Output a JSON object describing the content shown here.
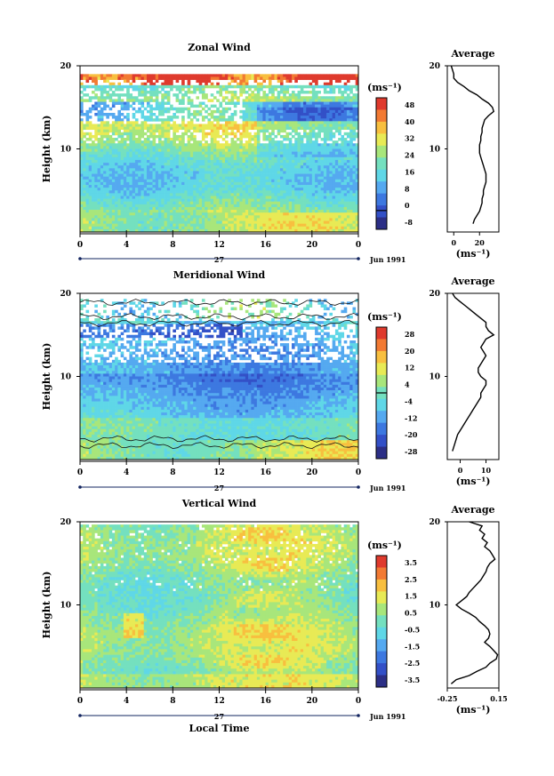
{
  "chart_data": [
    {
      "type": "heatmap",
      "title": "Zonal Wind",
      "ylabel": "Height (km)",
      "y_ticks": [
        "20",
        "10"
      ],
      "x_ticks": [
        "0",
        "4",
        "8",
        "12",
        "16",
        "20",
        "0"
      ],
      "date_day": "27",
      "date_label": "Jun 1991",
      "colorbar": {
        "unit": "(ms⁻¹)",
        "ticks": [
          "48",
          "40",
          "32",
          "24",
          "16",
          "8",
          "0",
          "-8"
        ],
        "min": -8,
        "max": 48,
        "zero_line_value": 0
      },
      "average_panel": {
        "title": "Average",
        "x_ticks": [
          "0",
          "20"
        ],
        "y_ticks": [
          "20",
          "10"
        ],
        "xlabel": "(ms⁻¹)",
        "profile_points": [
          [
            -2,
            20
          ],
          [
            0,
            19
          ],
          [
            0,
            18.5
          ],
          [
            3,
            18
          ],
          [
            8,
            17.5
          ],
          [
            12,
            17
          ],
          [
            18,
            16.5
          ],
          [
            22,
            16
          ],
          [
            27,
            15.5
          ],
          [
            30,
            15
          ],
          [
            31,
            14.5
          ],
          [
            27,
            14
          ],
          [
            24,
            13.5
          ],
          [
            23,
            13
          ],
          [
            22,
            12.5
          ],
          [
            22,
            12
          ],
          [
            21,
            11.5
          ],
          [
            21,
            11
          ],
          [
            20,
            10.5
          ],
          [
            20,
            10
          ],
          [
            20,
            9.5
          ],
          [
            21,
            9
          ],
          [
            22,
            8.5
          ],
          [
            23,
            8
          ],
          [
            24,
            7.5
          ],
          [
            25,
            7
          ],
          [
            25,
            6.5
          ],
          [
            25,
            6
          ],
          [
            24,
            5.5
          ],
          [
            23,
            5
          ],
          [
            23,
            4.5
          ],
          [
            22,
            4
          ],
          [
            22,
            3.5
          ],
          [
            21,
            3
          ],
          [
            20,
            2.5
          ],
          [
            18,
            2
          ],
          [
            16,
            1.5
          ],
          [
            15,
            1
          ]
        ]
      },
      "palette": [
        "#2c2f86",
        "#3350c7",
        "#3d78e0",
        "#55a9f0",
        "#5fd7e7",
        "#74e0bf",
        "#a8e67b",
        "#e8ea55",
        "#f8bf3f",
        "#f27a33",
        "#df3a2d"
      ]
    },
    {
      "type": "heatmap",
      "title": "Meridional Wind",
      "ylabel": "Height (km)",
      "y_ticks": [
        "20",
        "10"
      ],
      "x_ticks": [
        "0",
        "4",
        "8",
        "12",
        "16",
        "20",
        "0"
      ],
      "date_day": "27",
      "date_label": "Jun 1991",
      "colorbar": {
        "unit": "(ms⁻¹)",
        "ticks": [
          "28",
          "20",
          "12",
          "4",
          "-4",
          "-12",
          "-20",
          "-28"
        ],
        "min": -28,
        "max": 28,
        "zero_line_value": 0
      },
      "average_panel": {
        "title": "Average",
        "x_ticks": [
          "0",
          "10"
        ],
        "y_ticks": [
          "20",
          "10"
        ],
        "xlabel": "(ms⁻¹)",
        "profile_points": [
          [
            -3,
            20
          ],
          [
            -2,
            19.5
          ],
          [
            0,
            19
          ],
          [
            2,
            18.5
          ],
          [
            4,
            18
          ],
          [
            6,
            17.5
          ],
          [
            8,
            17
          ],
          [
            10,
            16.5
          ],
          [
            10,
            16
          ],
          [
            11,
            15.5
          ],
          [
            13,
            15
          ],
          [
            10,
            14.5
          ],
          [
            9,
            14
          ],
          [
            8,
            13.5
          ],
          [
            9,
            13
          ],
          [
            10,
            12.5
          ],
          [
            9,
            12
          ],
          [
            8,
            11.5
          ],
          [
            7,
            11
          ],
          [
            7,
            10.5
          ],
          [
            8,
            10
          ],
          [
            10,
            9.5
          ],
          [
            10,
            9
          ],
          [
            9,
            8.5
          ],
          [
            8,
            8
          ],
          [
            8,
            7.5
          ],
          [
            7,
            7
          ],
          [
            6,
            6.5
          ],
          [
            5,
            6
          ],
          [
            4,
            5.5
          ],
          [
            3,
            5
          ],
          [
            2,
            4.5
          ],
          [
            1,
            4
          ],
          [
            0,
            3.5
          ],
          [
            -1,
            3
          ],
          [
            -2,
            2
          ],
          [
            -3,
            1
          ]
        ]
      },
      "palette": [
        "#2c2f86",
        "#3350c7",
        "#3d78e0",
        "#55a9f0",
        "#5fd7e7",
        "#74e0bf",
        "#a8e67b",
        "#e8ea55",
        "#f8bf3f",
        "#f27a33",
        "#df3a2d"
      ]
    },
    {
      "type": "heatmap",
      "title": "Vertical Wind",
      "ylabel": "Height (km)",
      "xlabel": "Local Time",
      "y_ticks": [
        "20",
        "10"
      ],
      "x_ticks": [
        "0",
        "4",
        "8",
        "12",
        "16",
        "20",
        "0"
      ],
      "date_day": "27",
      "date_label": "Jun 1991",
      "colorbar": {
        "unit": "(ms⁻¹)",
        "ticks": [
          "3.5",
          "2.5",
          "1.5",
          "0.5",
          "-0.5",
          "-1.5",
          "-2.5",
          "-3.5"
        ],
        "min": -3.5,
        "max": 3.5
      },
      "average_panel": {
        "title": "Average",
        "x_ticks": [
          "-0.25",
          "0.15"
        ],
        "y_ticks": [
          "20",
          "10"
        ],
        "xlabel": "(ms⁻¹)",
        "profile_points": [
          [
            -0.08,
            20
          ],
          [
            0.02,
            19.5
          ],
          [
            0.0,
            19
          ],
          [
            0.04,
            18.5
          ],
          [
            0.02,
            18
          ],
          [
            0.06,
            17.5
          ],
          [
            0.04,
            17
          ],
          [
            0.08,
            16.5
          ],
          [
            0.1,
            16
          ],
          [
            0.12,
            15.5
          ],
          [
            0.08,
            15
          ],
          [
            0.06,
            14.5
          ],
          [
            0.05,
            14
          ],
          [
            0.03,
            13.5
          ],
          [
            0.01,
            13
          ],
          [
            -0.02,
            12.5
          ],
          [
            -0.05,
            12
          ],
          [
            -0.08,
            11.5
          ],
          [
            -0.1,
            11
          ],
          [
            -0.14,
            10.5
          ],
          [
            -0.18,
            10
          ],
          [
            -0.14,
            9.5
          ],
          [
            -0.08,
            9
          ],
          [
            -0.03,
            8.5
          ],
          [
            0.0,
            8
          ],
          [
            0.04,
            7.5
          ],
          [
            0.07,
            7
          ],
          [
            0.08,
            6.5
          ],
          [
            0.07,
            6
          ],
          [
            0.04,
            5.5
          ],
          [
            0.08,
            5
          ],
          [
            0.11,
            4.5
          ],
          [
            0.14,
            4
          ],
          [
            0.13,
            3.5
          ],
          [
            0.08,
            3
          ],
          [
            0.05,
            2.5
          ],
          [
            -0.02,
            2
          ],
          [
            -0.08,
            1.5
          ],
          [
            -0.18,
            1
          ],
          [
            -0.22,
            0.5
          ]
        ]
      },
      "palette": [
        "#2c2f86",
        "#3350c7",
        "#3d78e0",
        "#55a9f0",
        "#5fd7e7",
        "#74e0bf",
        "#a8e67b",
        "#e8ea55",
        "#f8bf3f",
        "#f27a33",
        "#df3a2d"
      ]
    }
  ]
}
